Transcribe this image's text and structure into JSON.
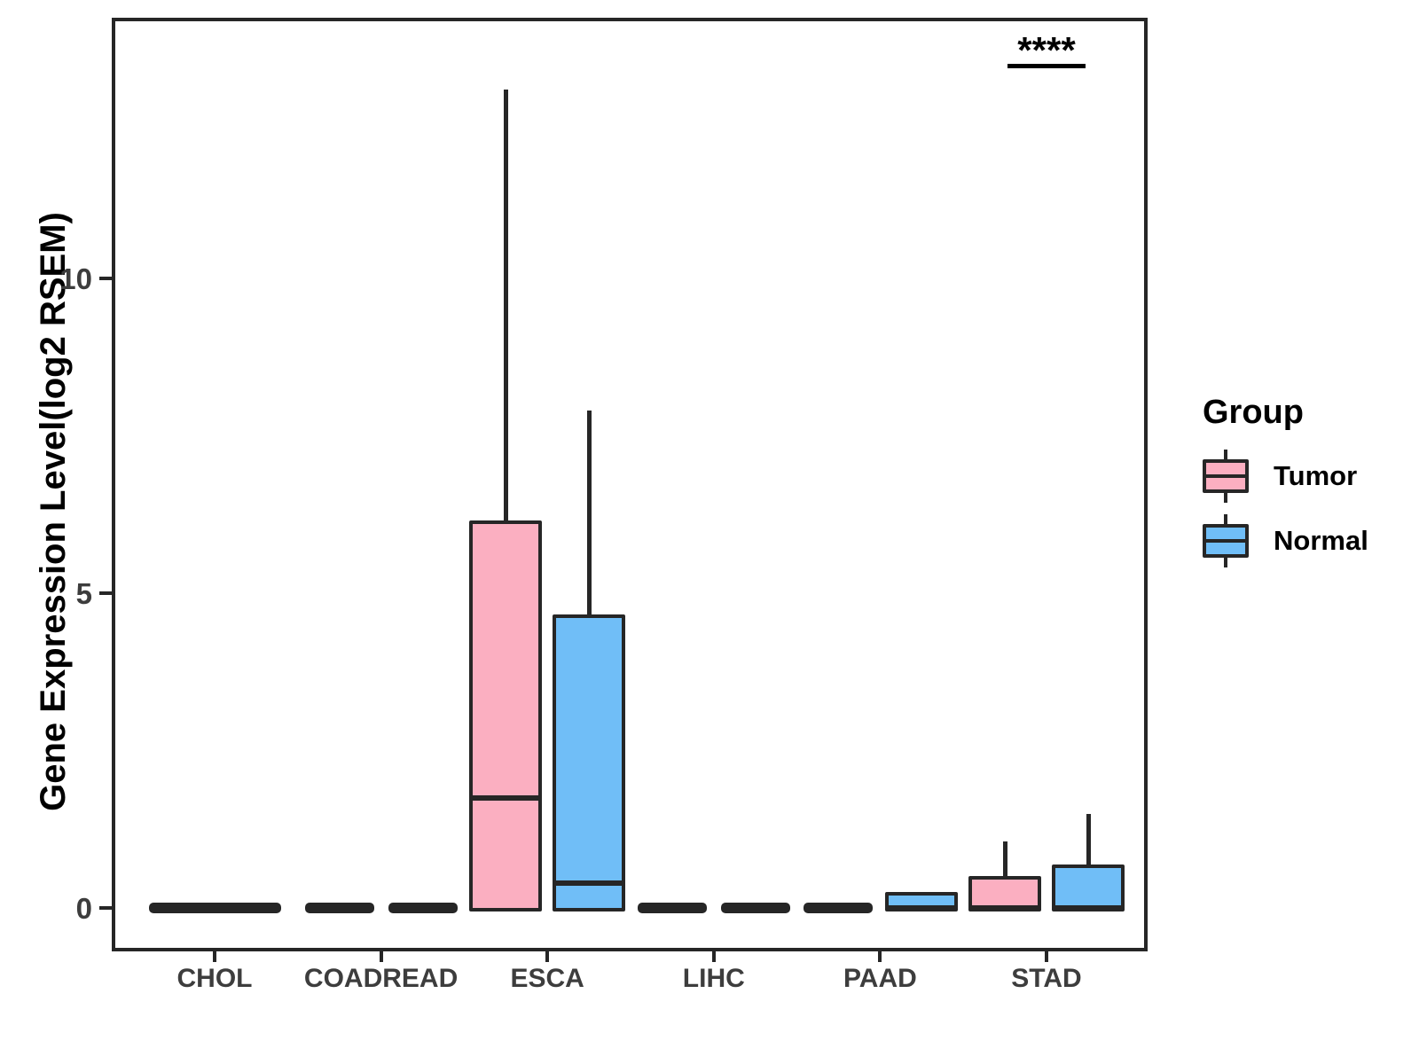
{
  "chart_data": {
    "type": "boxplot",
    "title": "",
    "ylabel": "Gene Expression Level(log2 RSEM)",
    "xlabel": "",
    "yticks": [
      0,
      5,
      10
    ],
    "ylim": [
      -0.65,
      14.1
    ],
    "grid": false,
    "categories": [
      "CHOL",
      "COADREAD",
      "ESCA",
      "LIHC",
      "PAAD",
      "STAD"
    ],
    "groups": [
      {
        "name": "Tumor",
        "color": "#FBAFC1"
      },
      {
        "name": "Normal",
        "color": "#70BEF7"
      }
    ],
    "boxes": [
      {
        "category": "CHOL",
        "group": "Tumor",
        "min": 0,
        "q1": 0,
        "median": 0,
        "q3": 0,
        "max": 0,
        "full_width": true
      },
      {
        "category": "COADREAD",
        "group": "Tumor",
        "min": 0,
        "q1": 0,
        "median": 0,
        "q3": 0,
        "max": 0
      },
      {
        "category": "COADREAD",
        "group": "Normal",
        "min": 0,
        "q1": 0,
        "median": 0,
        "q3": 0,
        "max": 0
      },
      {
        "category": "ESCA",
        "group": "Tumor",
        "min": 0,
        "q1": 0,
        "median": 1.75,
        "q3": 6.1,
        "max": 13.0
      },
      {
        "category": "ESCA",
        "group": "Normal",
        "min": 0,
        "q1": 0,
        "median": 0.4,
        "q3": 4.6,
        "max": 7.9
      },
      {
        "category": "LIHC",
        "group": "Tumor",
        "min": 0,
        "q1": 0,
        "median": 0,
        "q3": 0,
        "max": 0
      },
      {
        "category": "LIHC",
        "group": "Normal",
        "min": 0,
        "q1": 0,
        "median": 0,
        "q3": 0,
        "max": 0
      },
      {
        "category": "PAAD",
        "group": "Tumor",
        "min": 0,
        "q1": 0,
        "median": 0,
        "q3": 0,
        "max": 0
      },
      {
        "category": "PAAD",
        "group": "Normal",
        "min": 0,
        "q1": 0,
        "median": 0,
        "q3": 0.2,
        "max": 0.2
      },
      {
        "category": "STAD",
        "group": "Tumor",
        "min": 0,
        "q1": 0,
        "median": 0,
        "q3": 0.45,
        "max": 1.05
      },
      {
        "category": "STAD",
        "group": "Normal",
        "min": 0,
        "q1": 0,
        "median": 0,
        "q3": 0.63,
        "max": 1.5
      }
    ],
    "significance": {
      "label": "****",
      "category": "STAD"
    },
    "legend": {
      "title": "Group",
      "position": "right"
    },
    "colors": {
      "line": "#262626",
      "axis_text": "#3D3D3D",
      "background": "#FFFFFF"
    }
  }
}
